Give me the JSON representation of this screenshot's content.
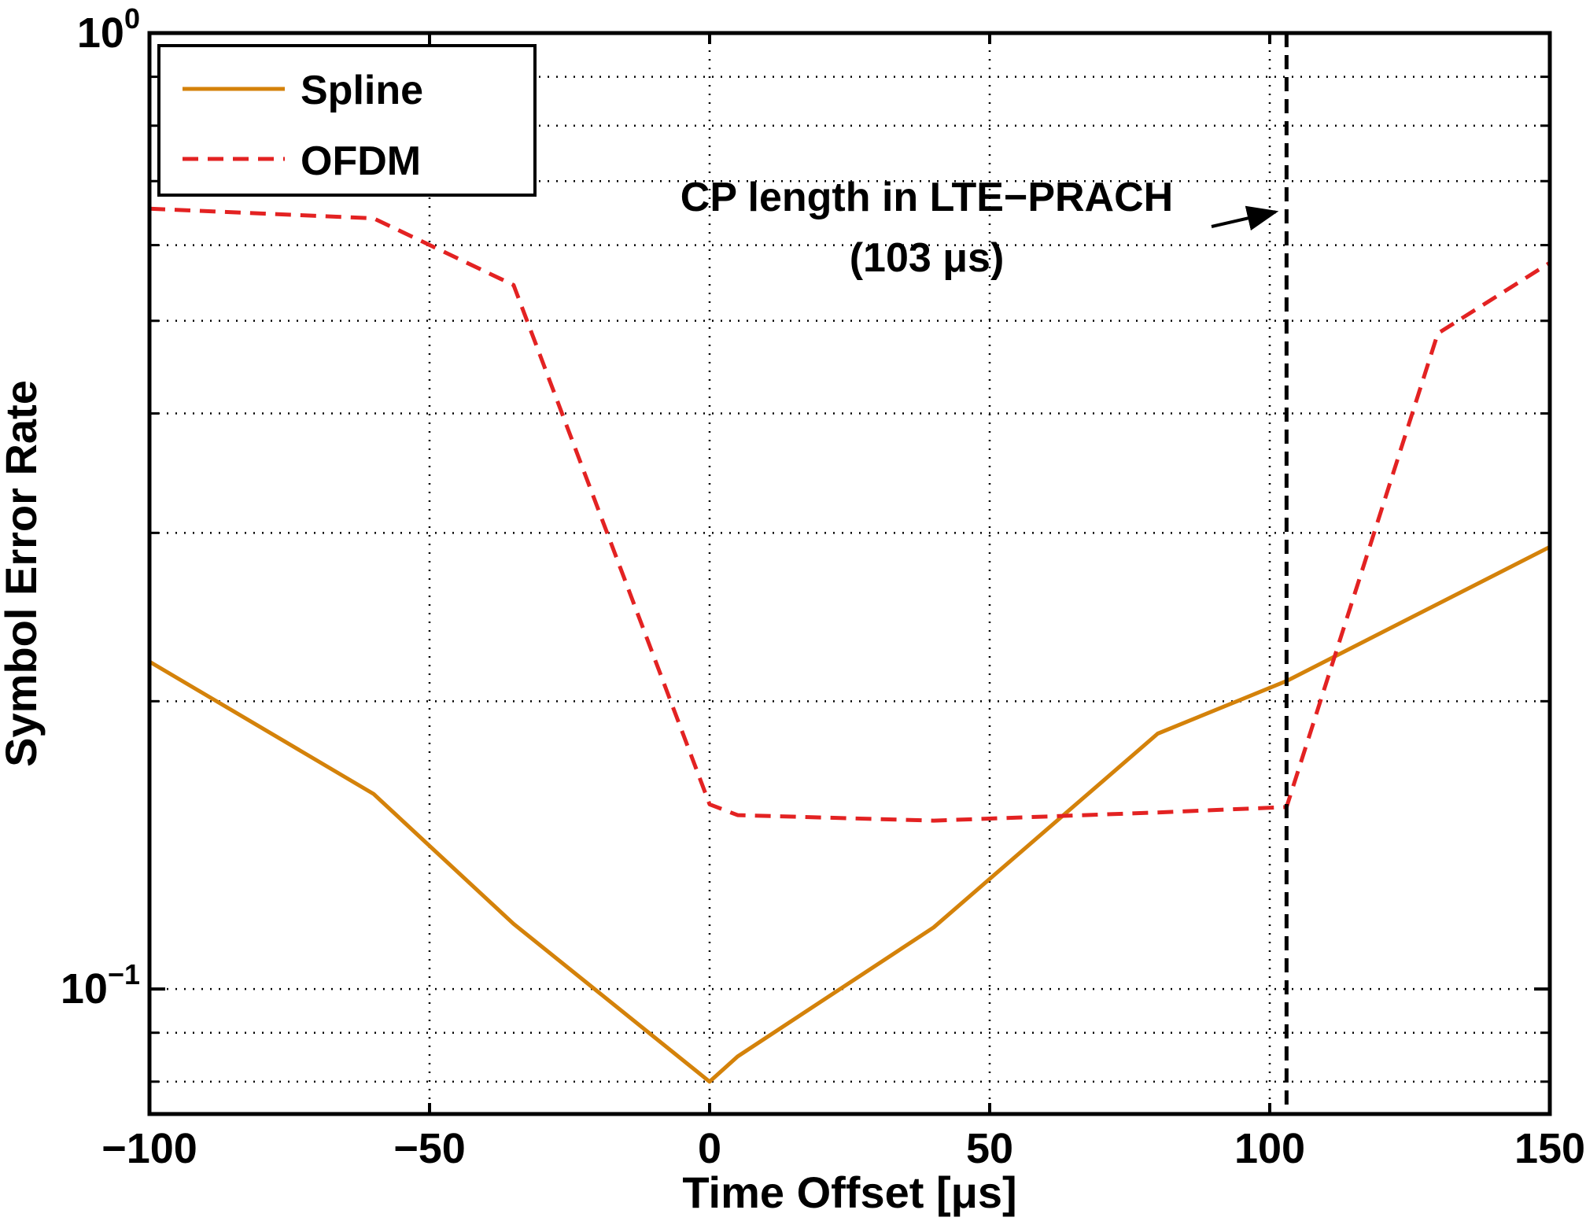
{
  "chart_data": {
    "type": "line",
    "title": "",
    "xlabel": "Time Offset [μs]",
    "ylabel": "Symbol Error Rate",
    "xlim": [
      -100,
      150
    ],
    "ylim": [
      0.074,
      1.0
    ],
    "yscale": "log",
    "grid": true,
    "legend_position": "top-left",
    "x_ticks": [
      {
        "value": -100,
        "label": "−100"
      },
      {
        "value": -50,
        "label": "−50"
      },
      {
        "value": 0,
        "label": "0"
      },
      {
        "value": 50,
        "label": "50"
      },
      {
        "value": 100,
        "label": "100"
      },
      {
        "value": 150,
        "label": "150"
      }
    ],
    "y_ticks": [
      {
        "value": 1.0,
        "base": "10",
        "exp": "0"
      },
      {
        "value": 0.1,
        "base": "10",
        "exp": "−1"
      }
    ],
    "series": [
      {
        "name": "Spline",
        "color": "#D4820A",
        "style": "solid",
        "x": [
          -100,
          -60,
          -35,
          0,
          5,
          40,
          80,
          103,
          150
        ],
        "y": [
          0.22,
          0.16,
          0.117,
          0.08,
          0.085,
          0.116,
          0.185,
          0.21,
          0.29
        ]
      },
      {
        "name": "OFDM",
        "color": "#E32222",
        "style": "dashed",
        "x": [
          -100,
          -60,
          -35,
          0,
          5,
          40,
          80,
          103,
          130,
          150
        ],
        "y": [
          0.655,
          0.64,
          0.545,
          0.156,
          0.152,
          0.15,
          0.153,
          0.155,
          0.485,
          0.575
        ]
      }
    ],
    "vline": {
      "x": 103,
      "color": "#000000",
      "style": "dashed"
    },
    "annotation": {
      "line1": "CP length in LTE−PRACH",
      "line2": "(103 μs)",
      "arrow_to_x": 103,
      "arrow_to_y": 0.655
    }
  }
}
